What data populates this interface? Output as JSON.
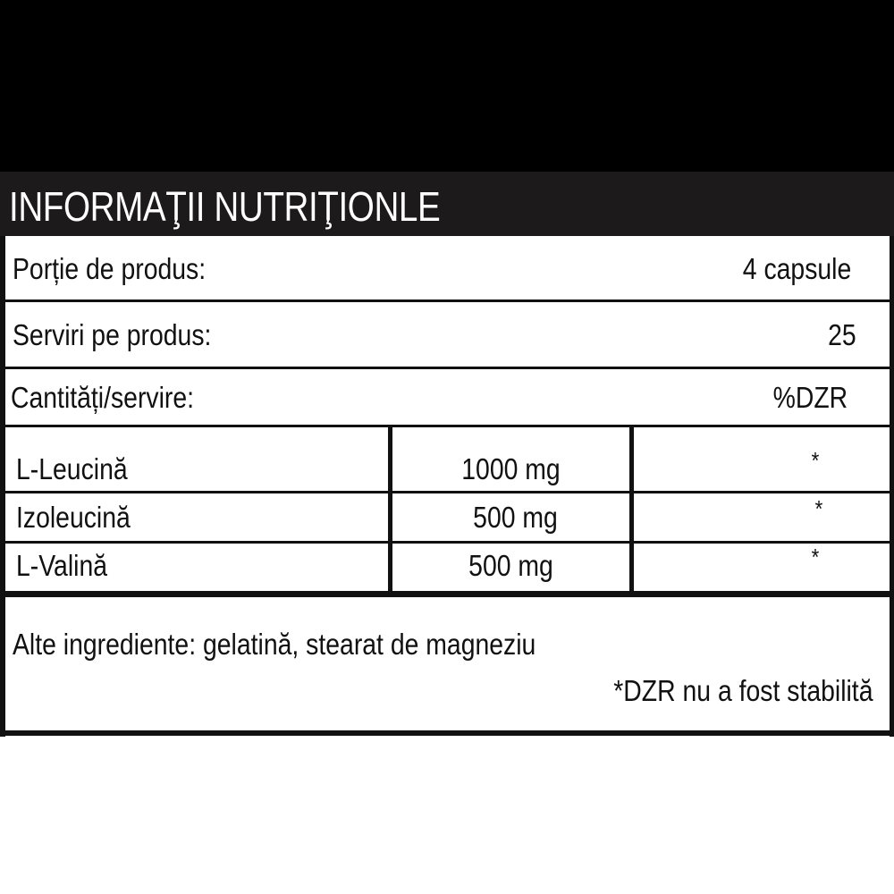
{
  "title": "INFORMAŢII NUTRIŢIONLE",
  "summary_rows": [
    {
      "label": "Porție de produs:",
      "value": "4 capsule"
    },
    {
      "label": "Serviri pe produs:",
      "value": "25"
    },
    {
      "label": "Cantități/servire:",
      "value": "%DZR"
    }
  ],
  "ingredients": [
    {
      "name": "L-Leucină",
      "amount": "1000 mg",
      "dzr": "*"
    },
    {
      "name": "Izoleucină",
      "amount": "500 mg",
      "dzr": "*"
    },
    {
      "name": "L-Valină",
      "amount": "500 mg",
      "dzr": "*"
    }
  ],
  "other_ingredients": "Alte ingrediente: gelatină, stearat de magneziu",
  "footnote": "*DZR nu a fost stabilită"
}
